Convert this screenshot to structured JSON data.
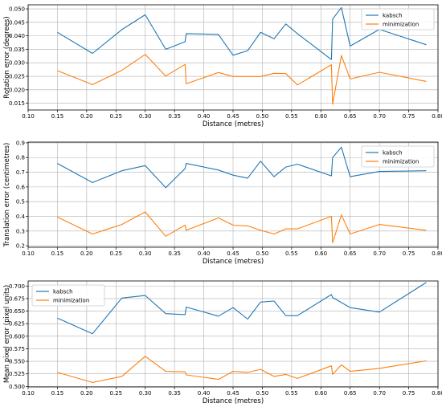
{
  "chart_data": [
    {
      "type": "line",
      "xlabel": "Distance (metres)",
      "ylabel": "Rotation error (degrees)",
      "xlim": [
        0.1,
        0.8
      ],
      "ylim": [
        0.0125,
        0.0515
      ],
      "xticks": [
        "0.10",
        "0.15",
        "0.20",
        "0.25",
        "0.30",
        "0.35",
        "0.40",
        "0.45",
        "0.50",
        "0.55",
        "0.60",
        "0.65",
        "0.70",
        "0.75",
        "0.80"
      ],
      "yticks": [
        "0.015",
        "0.020",
        "0.025",
        "0.030",
        "0.035",
        "0.040",
        "0.045",
        "0.050"
      ],
      "grid": true,
      "legend": "top-right",
      "x": [
        0.15,
        0.21,
        0.26,
        0.3,
        0.335,
        0.368,
        0.37,
        0.425,
        0.45,
        0.475,
        0.497,
        0.52,
        0.54,
        0.56,
        0.618,
        0.62,
        0.635,
        0.65,
        0.7,
        0.78
      ],
      "series": [
        {
          "name": "kabsch",
          "color": "#1f77b4",
          "values": [
            0.0413,
            0.0335,
            0.0423,
            0.0478,
            0.035,
            0.0378,
            0.0408,
            0.0405,
            0.0328,
            0.0345,
            0.0413,
            0.0389,
            0.0444,
            0.0408,
            0.0312,
            0.0462,
            0.0505,
            0.0362,
            0.0424,
            0.0367
          ]
        },
        {
          "name": "minimization",
          "color": "#ff7f0e",
          "values": [
            0.0271,
            0.0219,
            0.0272,
            0.0331,
            0.0251,
            0.0294,
            0.0222,
            0.0264,
            0.0249,
            0.0249,
            0.0249,
            0.0261,
            0.026,
            0.0218,
            0.0293,
            0.0146,
            0.0327,
            0.024,
            0.0265,
            0.0231
          ]
        }
      ]
    },
    {
      "type": "line",
      "xlabel": "Distance (metres)",
      "ylabel": "Translation error (centimetres)",
      "xlim": [
        0.1,
        0.8
      ],
      "ylim": [
        0.19,
        0.905
      ],
      "xticks": [
        "0.10",
        "0.15",
        "0.20",
        "0.25",
        "0.30",
        "0.35",
        "0.40",
        "0.45",
        "0.50",
        "0.55",
        "0.60",
        "0.65",
        "0.70",
        "0.75",
        "0.80"
      ],
      "yticks": [
        "0.2",
        "0.3",
        "0.4",
        "0.5",
        "0.6",
        "0.7",
        "0.8",
        "0.9"
      ],
      "grid": true,
      "legend": "top-right",
      "x": [
        0.15,
        0.21,
        0.26,
        0.3,
        0.335,
        0.368,
        0.37,
        0.425,
        0.45,
        0.475,
        0.497,
        0.52,
        0.54,
        0.56,
        0.618,
        0.62,
        0.635,
        0.65,
        0.7,
        0.78
      ],
      "series": [
        {
          "name": "kabsch",
          "color": "#1f77b4",
          "values": [
            0.76,
            0.63,
            0.71,
            0.745,
            0.595,
            0.725,
            0.76,
            0.715,
            0.68,
            0.66,
            0.775,
            0.67,
            0.735,
            0.755,
            0.675,
            0.8,
            0.87,
            0.67,
            0.705,
            0.71
          ]
        },
        {
          "name": "minimization",
          "color": "#ff7f0e",
          "values": [
            0.395,
            0.28,
            0.345,
            0.43,
            0.265,
            0.34,
            0.305,
            0.39,
            0.34,
            0.335,
            0.305,
            0.28,
            0.315,
            0.315,
            0.4,
            0.22,
            0.41,
            0.28,
            0.345,
            0.305
          ]
        }
      ]
    },
    {
      "type": "line",
      "xlabel": "Distance (metres)",
      "ylabel": "Mean pixel error (pixel units)",
      "xlim": [
        0.1,
        0.8
      ],
      "ylim": [
        0.499,
        0.71
      ],
      "xticks": [
        "0.10",
        "0.15",
        "0.20",
        "0.25",
        "0.30",
        "0.35",
        "0.40",
        "0.45",
        "0.50",
        "0.55",
        "0.60",
        "0.65",
        "0.70",
        "0.75",
        "0.80"
      ],
      "yticks": [
        "0.500",
        "0.525",
        "0.550",
        "0.575",
        "0.600",
        "0.625",
        "0.650",
        "0.675",
        "0.700"
      ],
      "grid": true,
      "legend": "top-left",
      "x": [
        0.15,
        0.21,
        0.26,
        0.3,
        0.335,
        0.368,
        0.37,
        0.425,
        0.45,
        0.475,
        0.497,
        0.52,
        0.54,
        0.56,
        0.618,
        0.62,
        0.635,
        0.65,
        0.7,
        0.78
      ],
      "series": [
        {
          "name": "kabsch",
          "color": "#1f77b4",
          "values": [
            0.636,
            0.605,
            0.676,
            0.681,
            0.645,
            0.643,
            0.658,
            0.64,
            0.657,
            0.634,
            0.668,
            0.67,
            0.641,
            0.641,
            0.683,
            0.677,
            0.667,
            0.657,
            0.648,
            0.707
          ]
        },
        {
          "name": "minimization",
          "color": "#ff7f0e",
          "values": [
            0.528,
            0.508,
            0.52,
            0.56,
            0.53,
            0.529,
            0.523,
            0.514,
            0.53,
            0.528,
            0.534,
            0.52,
            0.524,
            0.516,
            0.541,
            0.524,
            0.543,
            0.53,
            0.536,
            0.551
          ]
        }
      ]
    }
  ]
}
